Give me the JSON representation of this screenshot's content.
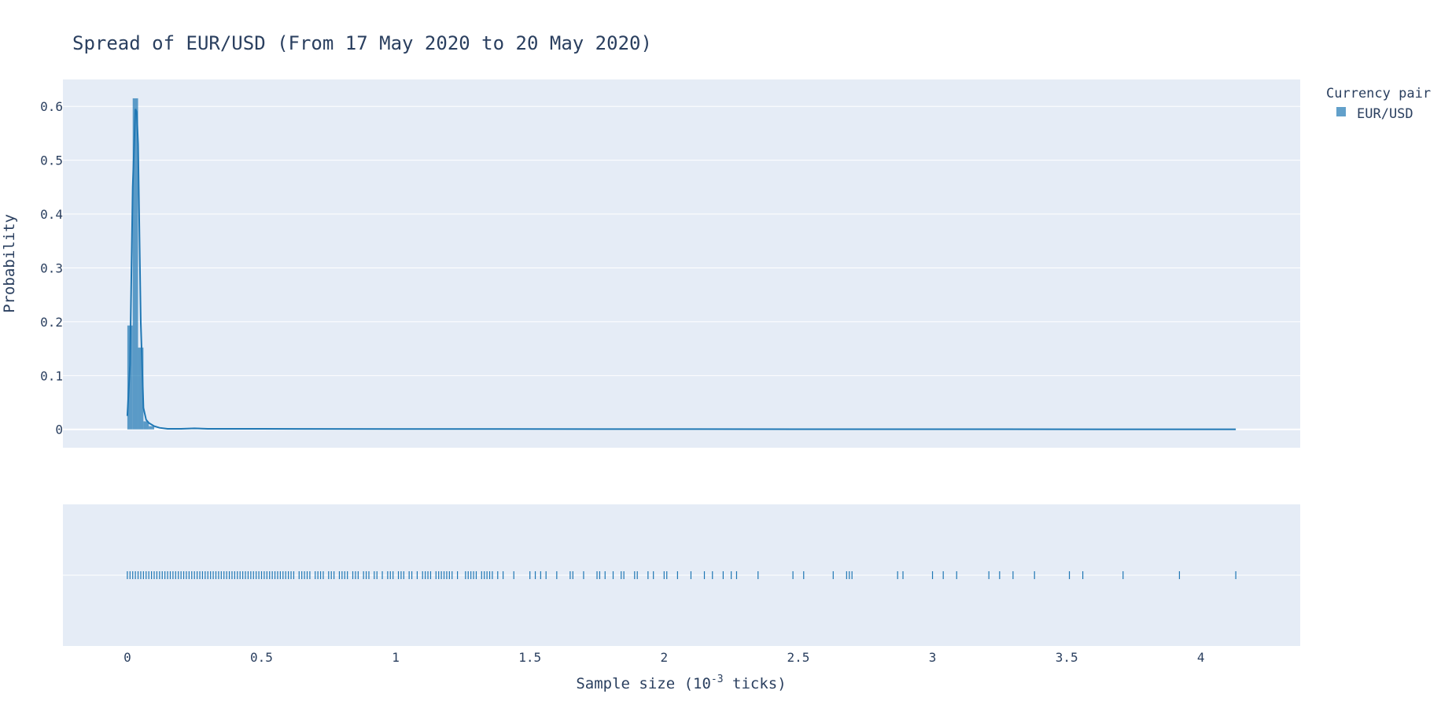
{
  "chart_data": {
    "type": "histogram",
    "title": "Spread of EUR/USD (From 17 May 2020 to 20 May 2020)",
    "xlabel_base": "Sample size (10",
    "xlabel_sup": "-3",
    "xlabel_tail": " ticks)",
    "ylabel": "Probability",
    "xlim": [
      -0.24,
      4.37
    ],
    "ylim": [
      -0.034,
      0.65
    ],
    "x_ticks": [
      0,
      0.5,
      1,
      1.5,
      2,
      2.5,
      3,
      3.5,
      4
    ],
    "x_tick_labels": [
      "0",
      "0.5",
      "1",
      "1.5",
      "2",
      "2.5",
      "3",
      "3.5",
      "4"
    ],
    "y_ticks": [
      0,
      0.1,
      0.2,
      0.3,
      0.4,
      0.5,
      0.6
    ],
    "y_tick_labels": [
      "0",
      "0.1",
      "0.2",
      "0.3",
      "0.4",
      "0.5",
      "0.6"
    ],
    "grid": true,
    "legend": {
      "title": "Currency pair",
      "placement": "top-right",
      "entries": [
        {
          "name": "EUR/USD",
          "color": "#1f77b4"
        }
      ]
    },
    "colors": {
      "series": "#1f77b4",
      "plot_bg": "#e5ecf6",
      "grid": "#ffffff",
      "text": "#2a3f5f"
    },
    "series": [
      {
        "name": "EUR/USD",
        "histogram": {
          "bin_width": 0.02,
          "bins_start": [
            0.0,
            0.02,
            0.04,
            0.06,
            0.08
          ],
          "values": [
            0.193,
            0.615,
            0.152,
            0.015,
            0.006
          ]
        },
        "kde": {
          "x": [
            0.0,
            0.01,
            0.02,
            0.03,
            0.035,
            0.04,
            0.05,
            0.06,
            0.07,
            0.08,
            0.1,
            0.12,
            0.15,
            0.2,
            0.25,
            0.3,
            0.5,
            1.0,
            2.0,
            3.0,
            4.0,
            4.13
          ],
          "y": [
            0.025,
            0.12,
            0.45,
            0.595,
            0.59,
            0.53,
            0.2,
            0.04,
            0.018,
            0.012,
            0.006,
            0.003,
            0.001,
            0.001,
            0.002,
            0.001,
            0.001,
            0.0008,
            0.0005,
            0.0003,
            0.0002,
            0.0002
          ]
        },
        "rug": [
          0.0,
          0.01,
          0.02,
          0.03,
          0.04,
          0.05,
          0.06,
          0.07,
          0.08,
          0.09,
          0.1,
          0.11,
          0.12,
          0.13,
          0.14,
          0.15,
          0.16,
          0.17,
          0.18,
          0.19,
          0.2,
          0.21,
          0.22,
          0.23,
          0.24,
          0.25,
          0.26,
          0.27,
          0.28,
          0.29,
          0.3,
          0.31,
          0.32,
          0.33,
          0.34,
          0.35,
          0.36,
          0.37,
          0.38,
          0.39,
          0.4,
          0.41,
          0.42,
          0.43,
          0.44,
          0.45,
          0.46,
          0.47,
          0.48,
          0.49,
          0.5,
          0.51,
          0.52,
          0.53,
          0.54,
          0.55,
          0.56,
          0.57,
          0.58,
          0.59,
          0.6,
          0.61,
          0.62,
          0.64,
          0.65,
          0.66,
          0.67,
          0.68,
          0.7,
          0.71,
          0.72,
          0.73,
          0.75,
          0.76,
          0.77,
          0.79,
          0.8,
          0.81,
          0.82,
          0.84,
          0.85,
          0.86,
          0.88,
          0.89,
          0.9,
          0.92,
          0.93,
          0.95,
          0.97,
          0.98,
          0.99,
          1.01,
          1.02,
          1.03,
          1.05,
          1.06,
          1.08,
          1.1,
          1.11,
          1.12,
          1.13,
          1.15,
          1.16,
          1.17,
          1.18,
          1.19,
          1.2,
          1.21,
          1.23,
          1.26,
          1.27,
          1.28,
          1.29,
          1.3,
          1.32,
          1.33,
          1.34,
          1.35,
          1.36,
          1.38,
          1.4,
          1.44,
          1.5,
          1.52,
          1.54,
          1.56,
          1.6,
          1.65,
          1.66,
          1.7,
          1.75,
          1.76,
          1.78,
          1.81,
          1.84,
          1.85,
          1.89,
          1.9,
          1.94,
          1.96,
          2.0,
          2.01,
          2.05,
          2.1,
          2.15,
          2.18,
          2.22,
          2.25,
          2.27,
          2.35,
          2.48,
          2.52,
          2.63,
          2.68,
          2.69,
          2.7,
          2.87,
          2.89,
          3.0,
          3.04,
          3.09,
          3.21,
          3.25,
          3.3,
          3.38,
          3.51,
          3.56,
          3.71,
          3.92,
          4.13
        ]
      }
    ]
  }
}
